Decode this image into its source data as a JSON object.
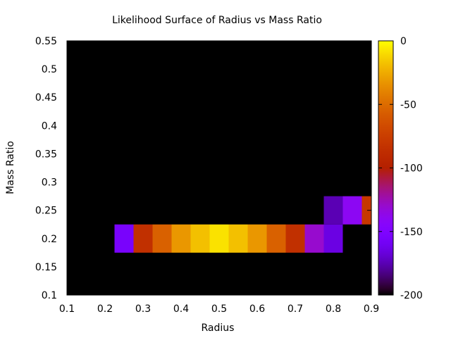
{
  "chart_data": {
    "type": "heatmap",
    "title": "Likelihood Surface of Radius vs Mass Ratio",
    "xlabel": "Radius",
    "ylabel": "Mass Ratio",
    "xlim": [
      0.1,
      0.9
    ],
    "ylim": [
      0.1,
      0.55
    ],
    "x_ticks": [
      "0.1",
      "0.2",
      "0.3",
      "0.4",
      "0.5",
      "0.6",
      "0.7",
      "0.8",
      "0.9"
    ],
    "y_ticks": [
      "0.1",
      "0.15",
      "0.2",
      "0.25",
      "0.3",
      "0.35",
      "0.4",
      "0.45",
      "0.5",
      "0.55"
    ],
    "cell_width": 0.05,
    "cell_height": 0.05,
    "background": "#000000",
    "colorbar": {
      "min": -200,
      "max": 0,
      "ticks": [
        "0",
        "-50",
        "-100",
        "-150",
        "-200"
      ],
      "palette": "gnuplot-pm3d-default"
    },
    "cells": [
      {
        "x": 0.25,
        "y": 0.2,
        "value": -155
      },
      {
        "x": 0.3,
        "y": 0.2,
        "value": -85
      },
      {
        "x": 0.35,
        "y": 0.2,
        "value": -55
      },
      {
        "x": 0.4,
        "y": 0.2,
        "value": -32
      },
      {
        "x": 0.45,
        "y": 0.2,
        "value": -18
      },
      {
        "x": 0.5,
        "y": 0.2,
        "value": -8
      },
      {
        "x": 0.55,
        "y": 0.2,
        "value": -18
      },
      {
        "x": 0.6,
        "y": 0.2,
        "value": -32
      },
      {
        "x": 0.65,
        "y": 0.2,
        "value": -55
      },
      {
        "x": 0.7,
        "y": 0.2,
        "value": -85
      },
      {
        "x": 0.75,
        "y": 0.2,
        "value": -130
      },
      {
        "x": 0.8,
        "y": 0.2,
        "value": -165
      },
      {
        "x": 0.8,
        "y": 0.25,
        "value": -175
      },
      {
        "x": 0.85,
        "y": 0.25,
        "value": -140
      },
      {
        "x": 0.9,
        "y": 0.25,
        "value": -80
      }
    ]
  }
}
